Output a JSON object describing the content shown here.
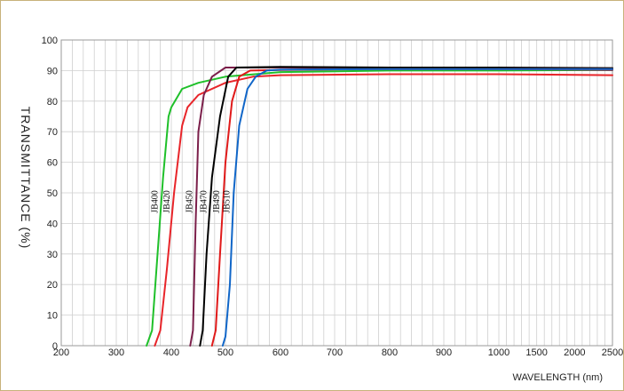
{
  "chart_data": {
    "type": "line",
    "title": "",
    "xlabel": "WAVELENGTH (nm)",
    "ylabel": "TRANSMITTANCE  (%)",
    "xticks": [
      "200",
      "300",
      "400",
      "500",
      "600",
      "700",
      "800",
      "900",
      "1000",
      "1500",
      "2000",
      "2500"
    ],
    "yticks": [
      "0",
      "10",
      "20",
      "30",
      "40",
      "50",
      "60",
      "70",
      "80",
      "90",
      "100"
    ],
    "ylim": [
      0,
      100
    ],
    "grid": true,
    "legend": "none",
    "series": [
      {
        "name": "JB400",
        "color": "#1fc02a",
        "points": [
          [
            355,
            0
          ],
          [
            365,
            5
          ],
          [
            375,
            30
          ],
          [
            385,
            55
          ],
          [
            395,
            75
          ],
          [
            400,
            78
          ],
          [
            420,
            84
          ],
          [
            450,
            86
          ],
          [
            500,
            88
          ],
          [
            600,
            89.5
          ],
          [
            800,
            90
          ],
          [
            1000,
            90
          ],
          [
            2500,
            90.2
          ]
        ]
      },
      {
        "name": "JB420",
        "color": "#e8252a",
        "points": [
          [
            370,
            0
          ],
          [
            380,
            5
          ],
          [
            392,
            25
          ],
          [
            405,
            50
          ],
          [
            420,
            72
          ],
          [
            430,
            78
          ],
          [
            450,
            82
          ],
          [
            500,
            86
          ],
          [
            550,
            88
          ],
          [
            600,
            88.5
          ],
          [
            800,
            88.8
          ],
          [
            1000,
            88.8
          ],
          [
            2500,
            88.5
          ]
        ]
      },
      {
        "name": "JB450",
        "color": "#7b1f4a",
        "points": [
          [
            435,
            0
          ],
          [
            440,
            5
          ],
          [
            445,
            40
          ],
          [
            450,
            70
          ],
          [
            460,
            82
          ],
          [
            475,
            88
          ],
          [
            500,
            91
          ],
          [
            600,
            91
          ],
          [
            800,
            90.5
          ],
          [
            1000,
            90.5
          ],
          [
            2500,
            90.2
          ]
        ]
      },
      {
        "name": "JB470",
        "color": "#000000",
        "points": [
          [
            453,
            0
          ],
          [
            458,
            5
          ],
          [
            465,
            30
          ],
          [
            475,
            55
          ],
          [
            490,
            75
          ],
          [
            505,
            88
          ],
          [
            520,
            91
          ],
          [
            600,
            91.2
          ],
          [
            800,
            91
          ],
          [
            1000,
            91
          ],
          [
            2500,
            90.8
          ]
        ]
      },
      {
        "name": "JB490",
        "color": "#e01a1a",
        "points": [
          [
            475,
            0
          ],
          [
            482,
            5
          ],
          [
            490,
            30
          ],
          [
            500,
            60
          ],
          [
            512,
            80
          ],
          [
            525,
            88
          ],
          [
            545,
            90
          ],
          [
            600,
            90.2
          ],
          [
            800,
            90.5
          ],
          [
            1000,
            90.5
          ],
          [
            2500,
            90.5
          ]
        ]
      },
      {
        "name": "JB510",
        "color": "#1066c8",
        "points": [
          [
            495,
            0
          ],
          [
            500,
            3
          ],
          [
            508,
            20
          ],
          [
            515,
            50
          ],
          [
            525,
            72
          ],
          [
            540,
            84
          ],
          [
            555,
            88
          ],
          [
            575,
            90
          ],
          [
            600,
            90.3
          ],
          [
            800,
            90.5
          ],
          [
            1000,
            90.5
          ],
          [
            2500,
            90.5
          ]
        ]
      }
    ]
  }
}
